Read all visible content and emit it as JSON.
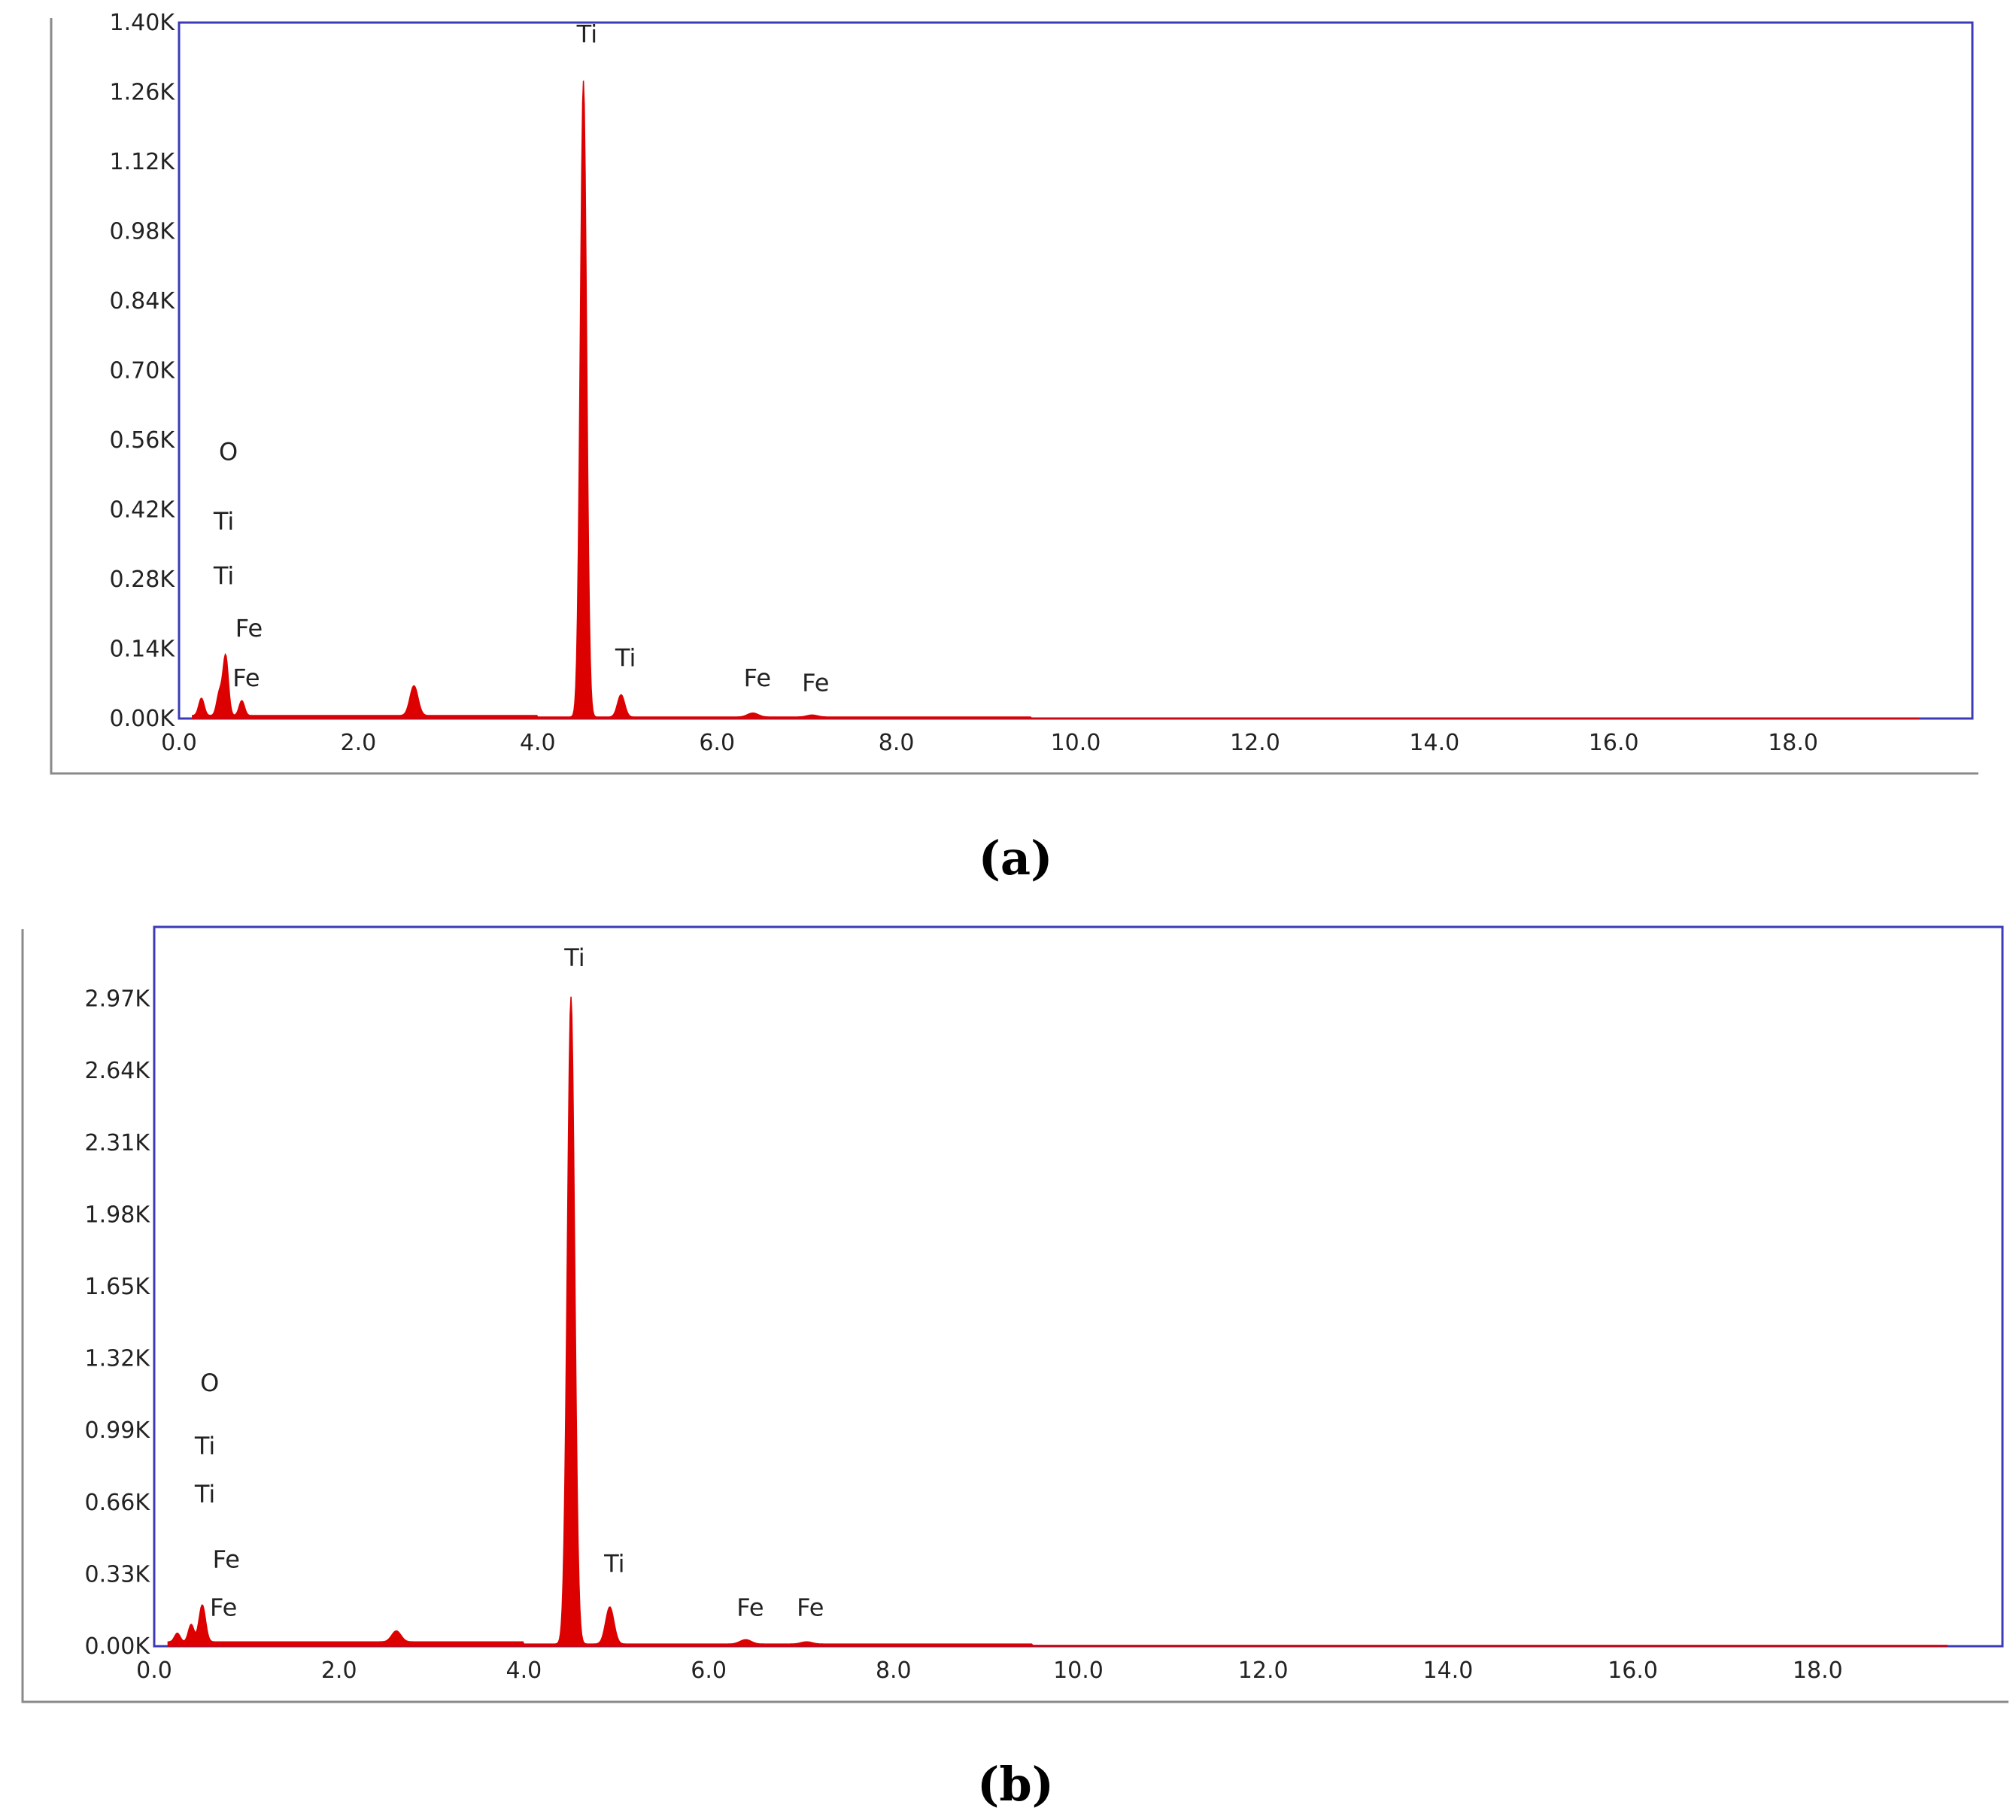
{
  "colors": {
    "spectrum_fill": "#dd0000",
    "plot_frame": "#3b3bb8",
    "outer_frame": "#8a8a8a"
  },
  "chart_data": [
    {
      "type": "area",
      "panel_label": "(a)",
      "title": "",
      "xlabel": "",
      "ylabel": "",
      "xlim": [
        0,
        20
      ],
      "ylim": [
        0,
        1.4
      ],
      "x_ticks": [
        "0.0",
        "2.0",
        "4.0",
        "6.0",
        "8.0",
        "10.0",
        "12.0",
        "14.0",
        "16.0",
        "18.0"
      ],
      "x_tick_values": [
        0,
        2,
        4,
        6,
        8,
        10,
        12,
        14,
        16,
        18
      ],
      "y_ticks": [
        "0.00K",
        "0.14K",
        "0.28K",
        "0.42K",
        "0.56K",
        "0.70K",
        "0.84K",
        "0.98K",
        "1.12K",
        "1.26K",
        "1.40K"
      ],
      "y_tick_values": [
        0,
        0.14,
        0.28,
        0.42,
        0.56,
        0.7,
        0.84,
        0.98,
        1.12,
        1.26,
        1.4
      ],
      "grid": false,
      "background": 0.006,
      "peaks": [
        {
          "x": 0.25,
          "y": 0.035,
          "w": 0.03
        },
        {
          "x": 0.45,
          "y": 0.045,
          "w": 0.03
        },
        {
          "x": 0.52,
          "y": 0.12,
          "w": 0.03
        },
        {
          "x": 0.7,
          "y": 0.03,
          "w": 0.03
        },
        {
          "x": 2.62,
          "y": 0.06,
          "w": 0.045
        },
        {
          "x": 4.51,
          "y": 1.28,
          "w": 0.035
        },
        {
          "x": 4.93,
          "y": 0.045,
          "w": 0.04
        },
        {
          "x": 6.4,
          "y": 0.008,
          "w": 0.06
        },
        {
          "x": 7.06,
          "y": 0.004,
          "w": 0.06
        }
      ],
      "annotations": [
        {
          "text": "Ti",
          "x": 4.55,
          "y": 1.36
        },
        {
          "text": "O",
          "x": 0.55,
          "y": 0.52
        },
        {
          "text": "Ti",
          "x": 0.5,
          "y": 0.38
        },
        {
          "text": "Ti",
          "x": 0.5,
          "y": 0.27
        },
        {
          "text": "Fe",
          "x": 0.78,
          "y": 0.165
        },
        {
          "text": "Fe",
          "x": 0.75,
          "y": 0.065
        },
        {
          "text": "Ti",
          "x": 4.98,
          "y": 0.105
        },
        {
          "text": "Fe",
          "x": 6.45,
          "y": 0.065
        },
        {
          "text": "Fe",
          "x": 7.1,
          "y": 0.055
        }
      ]
    },
    {
      "type": "area",
      "panel_label": "(b)",
      "title": "",
      "xlabel": "",
      "ylabel": "",
      "xlim": [
        0,
        20
      ],
      "ylim": [
        0,
        3.3
      ],
      "x_ticks": [
        "0.0",
        "2.0",
        "4.0",
        "6.0",
        "8.0",
        "10.0",
        "12.0",
        "14.0",
        "16.0",
        "18.0"
      ],
      "x_tick_values": [
        0,
        2,
        4,
        6,
        8,
        10,
        12,
        14,
        16,
        18
      ],
      "y_ticks": [
        "0.00K",
        "0.33K",
        "0.66K",
        "0.99K",
        "1.32K",
        "1.65K",
        "1.98K",
        "2.31K",
        "2.64K",
        "2.97K"
      ],
      "y_tick_values": [
        0,
        0.33,
        0.66,
        0.99,
        1.32,
        1.65,
        1.98,
        2.31,
        2.64,
        2.97
      ],
      "grid": false,
      "background": 0.02,
      "peaks": [
        {
          "x": 0.25,
          "y": 0.04,
          "w": 0.03
        },
        {
          "x": 0.4,
          "y": 0.08,
          "w": 0.03
        },
        {
          "x": 0.52,
          "y": 0.17,
          "w": 0.035
        },
        {
          "x": 2.62,
          "y": 0.05,
          "w": 0.05
        },
        {
          "x": 4.51,
          "y": 2.97,
          "w": 0.04
        },
        {
          "x": 4.93,
          "y": 0.17,
          "w": 0.045
        },
        {
          "x": 6.4,
          "y": 0.02,
          "w": 0.06
        },
        {
          "x": 7.06,
          "y": 0.01,
          "w": 0.06
        }
      ],
      "annotations": [
        {
          "text": "Ti",
          "x": 4.55,
          "y": 3.12
        },
        {
          "text": "O",
          "x": 0.6,
          "y": 1.17
        },
        {
          "text": "Ti",
          "x": 0.55,
          "y": 0.88
        },
        {
          "text": "Ti",
          "x": 0.55,
          "y": 0.66
        },
        {
          "text": "Fe",
          "x": 0.78,
          "y": 0.36
        },
        {
          "text": "Fe",
          "x": 0.75,
          "y": 0.14
        },
        {
          "text": "Ti",
          "x": 4.98,
          "y": 0.34
        },
        {
          "text": "Fe",
          "x": 6.45,
          "y": 0.14
        },
        {
          "text": "Fe",
          "x": 7.1,
          "y": 0.14
        }
      ]
    }
  ]
}
